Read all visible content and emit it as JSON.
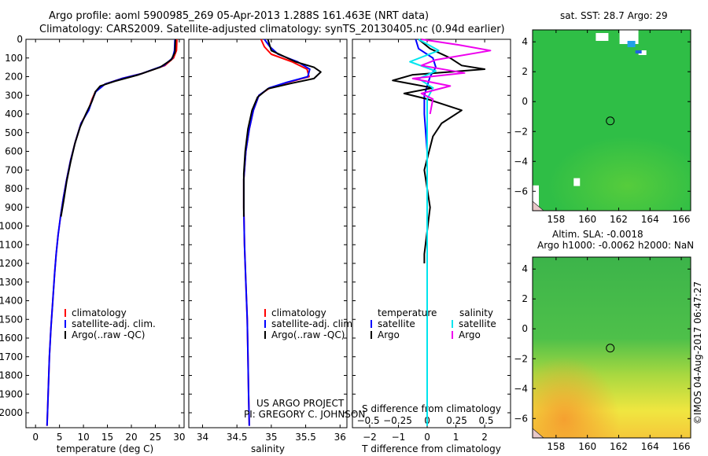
{
  "header": {
    "line1": "Argo profile: aoml 5900985_269 05-Apr-2013 1.288S 161.463E (NRT data)",
    "line2": "Climatology: CARS2009. Satellite-adjusted climatology: synTS_20130405.nc (0.94d earlier)"
  },
  "map_titles": {
    "sst": "sat. SST: 28.7 Argo: 29",
    "sla1": "Altim. SLA: -0.0018",
    "sla2": "Argo h1000: -0.0062 h2000: NaN"
  },
  "credits": {
    "line1": "US ARGO PROJECT",
    "line2": "PI: GREGORY C. JOHNSON"
  },
  "stamp": "©IMOS 04-Aug-2017 06:47:27",
  "colors": {
    "climatology": "#ff0000",
    "satellite": "#0000ff",
    "argo": "#000000",
    "sal_sat": "#00e5ee",
    "sal_argo": "#ee00ee",
    "ocean_green": "#4cc84c",
    "land_white": "#ffffff"
  },
  "chart_data": [
    {
      "type": "line",
      "name": "temperature",
      "xlabel": "temperature (deg C)",
      "xlim": [
        -2,
        31
      ],
      "ylim": [
        2080,
        0
      ],
      "xticks": [
        0,
        5,
        10,
        15,
        20,
        25,
        30
      ],
      "yticks": [
        0,
        100,
        200,
        300,
        400,
        500,
        600,
        700,
        800,
        900,
        1000,
        1100,
        1200,
        1300,
        1400,
        1500,
        1600,
        1700,
        1800,
        1900,
        2000
      ],
      "legend": [
        "climatology",
        "satellite-adj. clim.",
        "Argo(..raw -QC)"
      ],
      "series": [
        {
          "name": "climatology",
          "color": "red",
          "points": [
            [
              29.5,
              0
            ],
            [
              29.4,
              60
            ],
            [
              28.8,
              100
            ],
            [
              27,
              140
            ],
            [
              22,
              185
            ],
            [
              18,
              210
            ],
            [
              14.5,
              240
            ],
            [
              12.5,
              280
            ],
            [
              11.8,
              320
            ],
            [
              11,
              380
            ],
            [
              9.5,
              450
            ],
            [
              8.3,
              550
            ],
            [
              7.3,
              650
            ],
            [
              6.5,
              750
            ],
            [
              5.8,
              850
            ],
            [
              5.2,
              950
            ],
            [
              4.7,
              1050
            ],
            [
              4.3,
              1150
            ],
            [
              4,
              1250
            ],
            [
              3.6,
              1400
            ],
            [
              3.2,
              1550
            ],
            [
              2.9,
              1700
            ],
            [
              2.7,
              1850
            ],
            [
              2.5,
              2000
            ],
            [
              2.4,
              2070
            ]
          ]
        },
        {
          "name": "satellite-adj. clim.",
          "color": "blue",
          "points": [
            [
              29.1,
              0
            ],
            [
              29,
              60
            ],
            [
              28.6,
              100
            ],
            [
              26.8,
              140
            ],
            [
              22,
              185
            ],
            [
              18,
              210
            ],
            [
              14.5,
              240
            ],
            [
              12.6,
              280
            ],
            [
              11.9,
              320
            ],
            [
              11.1,
              380
            ],
            [
              9.5,
              450
            ],
            [
              8.3,
              550
            ],
            [
              7.3,
              650
            ],
            [
              6.5,
              750
            ],
            [
              5.8,
              850
            ],
            [
              5.2,
              950
            ],
            [
              4.7,
              1050
            ],
            [
              4.3,
              1150
            ],
            [
              4,
              1250
            ],
            [
              3.6,
              1400
            ],
            [
              3.2,
              1550
            ],
            [
              2.9,
              1700
            ],
            [
              2.7,
              1850
            ],
            [
              2.5,
              2000
            ],
            [
              2.4,
              2070
            ]
          ]
        },
        {
          "name": "Argo(..raw -QC)",
          "color": "black",
          "points": [
            [
              29.2,
              0
            ],
            [
              29.1,
              70
            ],
            [
              28.3,
              110
            ],
            [
              26,
              150
            ],
            [
              21.5,
              190
            ],
            [
              16.5,
              225
            ],
            [
              13.5,
              250
            ],
            [
              12.5,
              280
            ],
            [
              11.8,
              330
            ],
            [
              10.5,
              400
            ],
            [
              9.3,
              470
            ],
            [
              8.2,
              560
            ],
            [
              7.3,
              660
            ],
            [
              6.5,
              760
            ],
            [
              5.9,
              860
            ],
            [
              5.3,
              950
            ]
          ]
        }
      ]
    },
    {
      "type": "line",
      "name": "salinity",
      "xlabel": "salinity",
      "xlim": [
        33.8,
        36.1
      ],
      "ylim": [
        2080,
        0
      ],
      "xticks": [
        34,
        34.5,
        35,
        35.5,
        36
      ],
      "legend": [
        "climatology",
        "satellite-adj. clim.",
        "Argo(..raw -QC)"
      ],
      "series": [
        {
          "name": "climatology",
          "color": "red",
          "points": [
            [
              34.85,
              0
            ],
            [
              34.9,
              40
            ],
            [
              35.0,
              80
            ],
            [
              35.3,
              120
            ],
            [
              35.52,
              160
            ],
            [
              35.55,
              200
            ],
            [
              35.25,
              230
            ],
            [
              34.98,
              260
            ],
            [
              34.82,
              300
            ],
            [
              34.74,
              380
            ],
            [
              34.68,
              480
            ],
            [
              34.63,
              600
            ],
            [
              34.6,
              750
            ],
            [
              34.6,
              900
            ],
            [
              34.61,
              1100
            ],
            [
              34.63,
              1300
            ],
            [
              34.65,
              1500
            ],
            [
              34.66,
              1700
            ],
            [
              34.67,
              1900
            ],
            [
              34.68,
              2070
            ]
          ]
        },
        {
          "name": "satellite-adj. clim.",
          "color": "blue",
          "points": [
            [
              34.9,
              0
            ],
            [
              34.98,
              40
            ],
            [
              35.1,
              80
            ],
            [
              35.38,
              120
            ],
            [
              35.56,
              160
            ],
            [
              35.53,
              200
            ],
            [
              35.23,
              230
            ],
            [
              34.97,
              260
            ],
            [
              34.82,
              300
            ],
            [
              34.74,
              380
            ],
            [
              34.68,
              480
            ],
            [
              34.63,
              600
            ],
            [
              34.6,
              750
            ],
            [
              34.6,
              900
            ],
            [
              34.61,
              1100
            ],
            [
              34.63,
              1300
            ],
            [
              34.65,
              1500
            ],
            [
              34.66,
              1700
            ],
            [
              34.67,
              1900
            ],
            [
              34.68,
              2070
            ]
          ]
        },
        {
          "name": "Argo(..raw -QC)",
          "color": "black",
          "points": [
            [
              34.95,
              0
            ],
            [
              35.0,
              60
            ],
            [
              35.35,
              120
            ],
            [
              35.62,
              150
            ],
            [
              35.72,
              175
            ],
            [
              35.62,
              210
            ],
            [
              35.3,
              235
            ],
            [
              34.95,
              265
            ],
            [
              34.8,
              310
            ],
            [
              34.72,
              380
            ],
            [
              34.66,
              480
            ],
            [
              34.62,
              600
            ],
            [
              34.6,
              720
            ],
            [
              34.6,
              850
            ],
            [
              34.6,
              950
            ]
          ]
        }
      ]
    },
    {
      "type": "line",
      "name": "difference",
      "xlabel": "T difference from climatology",
      "xlabel2": "S difference from climatology",
      "xlim": [
        -2.6,
        2.9
      ],
      "ylim": [
        2080,
        0
      ],
      "xticks": [
        -2,
        -1,
        0,
        1,
        2
      ],
      "sticks": [
        -0.5,
        -0.25,
        0,
        0.25,
        0.5
      ],
      "legend_titles": [
        "temperature",
        "salinity"
      ],
      "legend": [
        "satellite",
        "Argo",
        "satellite",
        "Argo"
      ],
      "series": [
        {
          "name": "T satellite",
          "color": "blue",
          "points": [
            [
              -0.4,
              0
            ],
            [
              -0.3,
              50
            ],
            [
              0.2,
              100
            ],
            [
              0.3,
              150
            ],
            [
              0.1,
              200
            ],
            [
              -0.1,
              300
            ],
            [
              -0.1,
              400
            ],
            [
              0,
              600
            ],
            [
              0,
              800
            ],
            [
              0,
              1000
            ],
            [
              0,
              1100
            ]
          ]
        },
        {
          "name": "T Argo",
          "color": "black",
          "points": [
            [
              -0.3,
              0
            ],
            [
              0.1,
              50
            ],
            [
              0.8,
              100
            ],
            [
              1.2,
              140
            ],
            [
              2.0,
              160
            ],
            [
              -0.5,
              190
            ],
            [
              -1.2,
              220
            ],
            [
              0.2,
              260
            ],
            [
              -0.8,
              290
            ],
            [
              0,
              320
            ],
            [
              1.2,
              380
            ],
            [
              0.5,
              450
            ],
            [
              0.2,
              520
            ],
            [
              -0.1,
              700
            ],
            [
              0.1,
              900
            ],
            [
              -0.1,
              1150
            ],
            [
              -0.1,
              1200
            ]
          ]
        },
        {
          "name": "S satellite",
          "color": "cyan",
          "points": [
            [
              -0.3,
              0
            ],
            [
              0.4,
              60
            ],
            [
              -0.6,
              120
            ],
            [
              0.3,
              170
            ],
            [
              -0.3,
              210
            ],
            [
              0.2,
              260
            ],
            [
              0,
              320
            ],
            [
              0,
              400
            ],
            [
              0,
              700
            ],
            [
              0,
              1000
            ],
            [
              0,
              1400
            ],
            [
              0,
              1800
            ],
            [
              0,
              2070
            ]
          ]
        },
        {
          "name": "S Argo",
          "color": "magenta",
          "points": [
            [
              -0.2,
              0
            ],
            [
              1.1,
              30
            ],
            [
              2.2,
              60
            ],
            [
              0.3,
              110
            ],
            [
              -0.2,
              140
            ],
            [
              1.3,
              180
            ],
            [
              -0.5,
              210
            ],
            [
              0.8,
              250
            ],
            [
              -0.2,
              290
            ],
            [
              0.2,
              320
            ],
            [
              0.1,
              400
            ]
          ]
        }
      ]
    },
    {
      "type": "heatmap",
      "name": "sst_map",
      "title": "sat. SST: 28.7 Argo: 29",
      "xlim": [
        156.5,
        166.6
      ],
      "ylim": [
        -7.3,
        4.8
      ],
      "xticks": [
        158,
        160,
        162,
        164,
        166
      ],
      "yticks": [
        -6,
        -4,
        -2,
        0,
        2,
        4
      ],
      "argo_position": [
        161.46,
        -1.29
      ],
      "description_values": {
        "field_mean": 28.7
      }
    },
    {
      "type": "heatmap",
      "name": "sla_map",
      "title": "Altim. SLA: -0.0018",
      "xlim": [
        156.5,
        166.6
      ],
      "ylim": [
        -7.3,
        4.8
      ],
      "xticks": [
        158,
        160,
        162,
        164,
        166
      ],
      "yticks": [
        -6,
        -4,
        -2,
        0,
        2,
        4
      ],
      "argo_position": [
        161.46,
        -1.29
      ],
      "description_values": {
        "sla": -0.0018
      }
    }
  ]
}
